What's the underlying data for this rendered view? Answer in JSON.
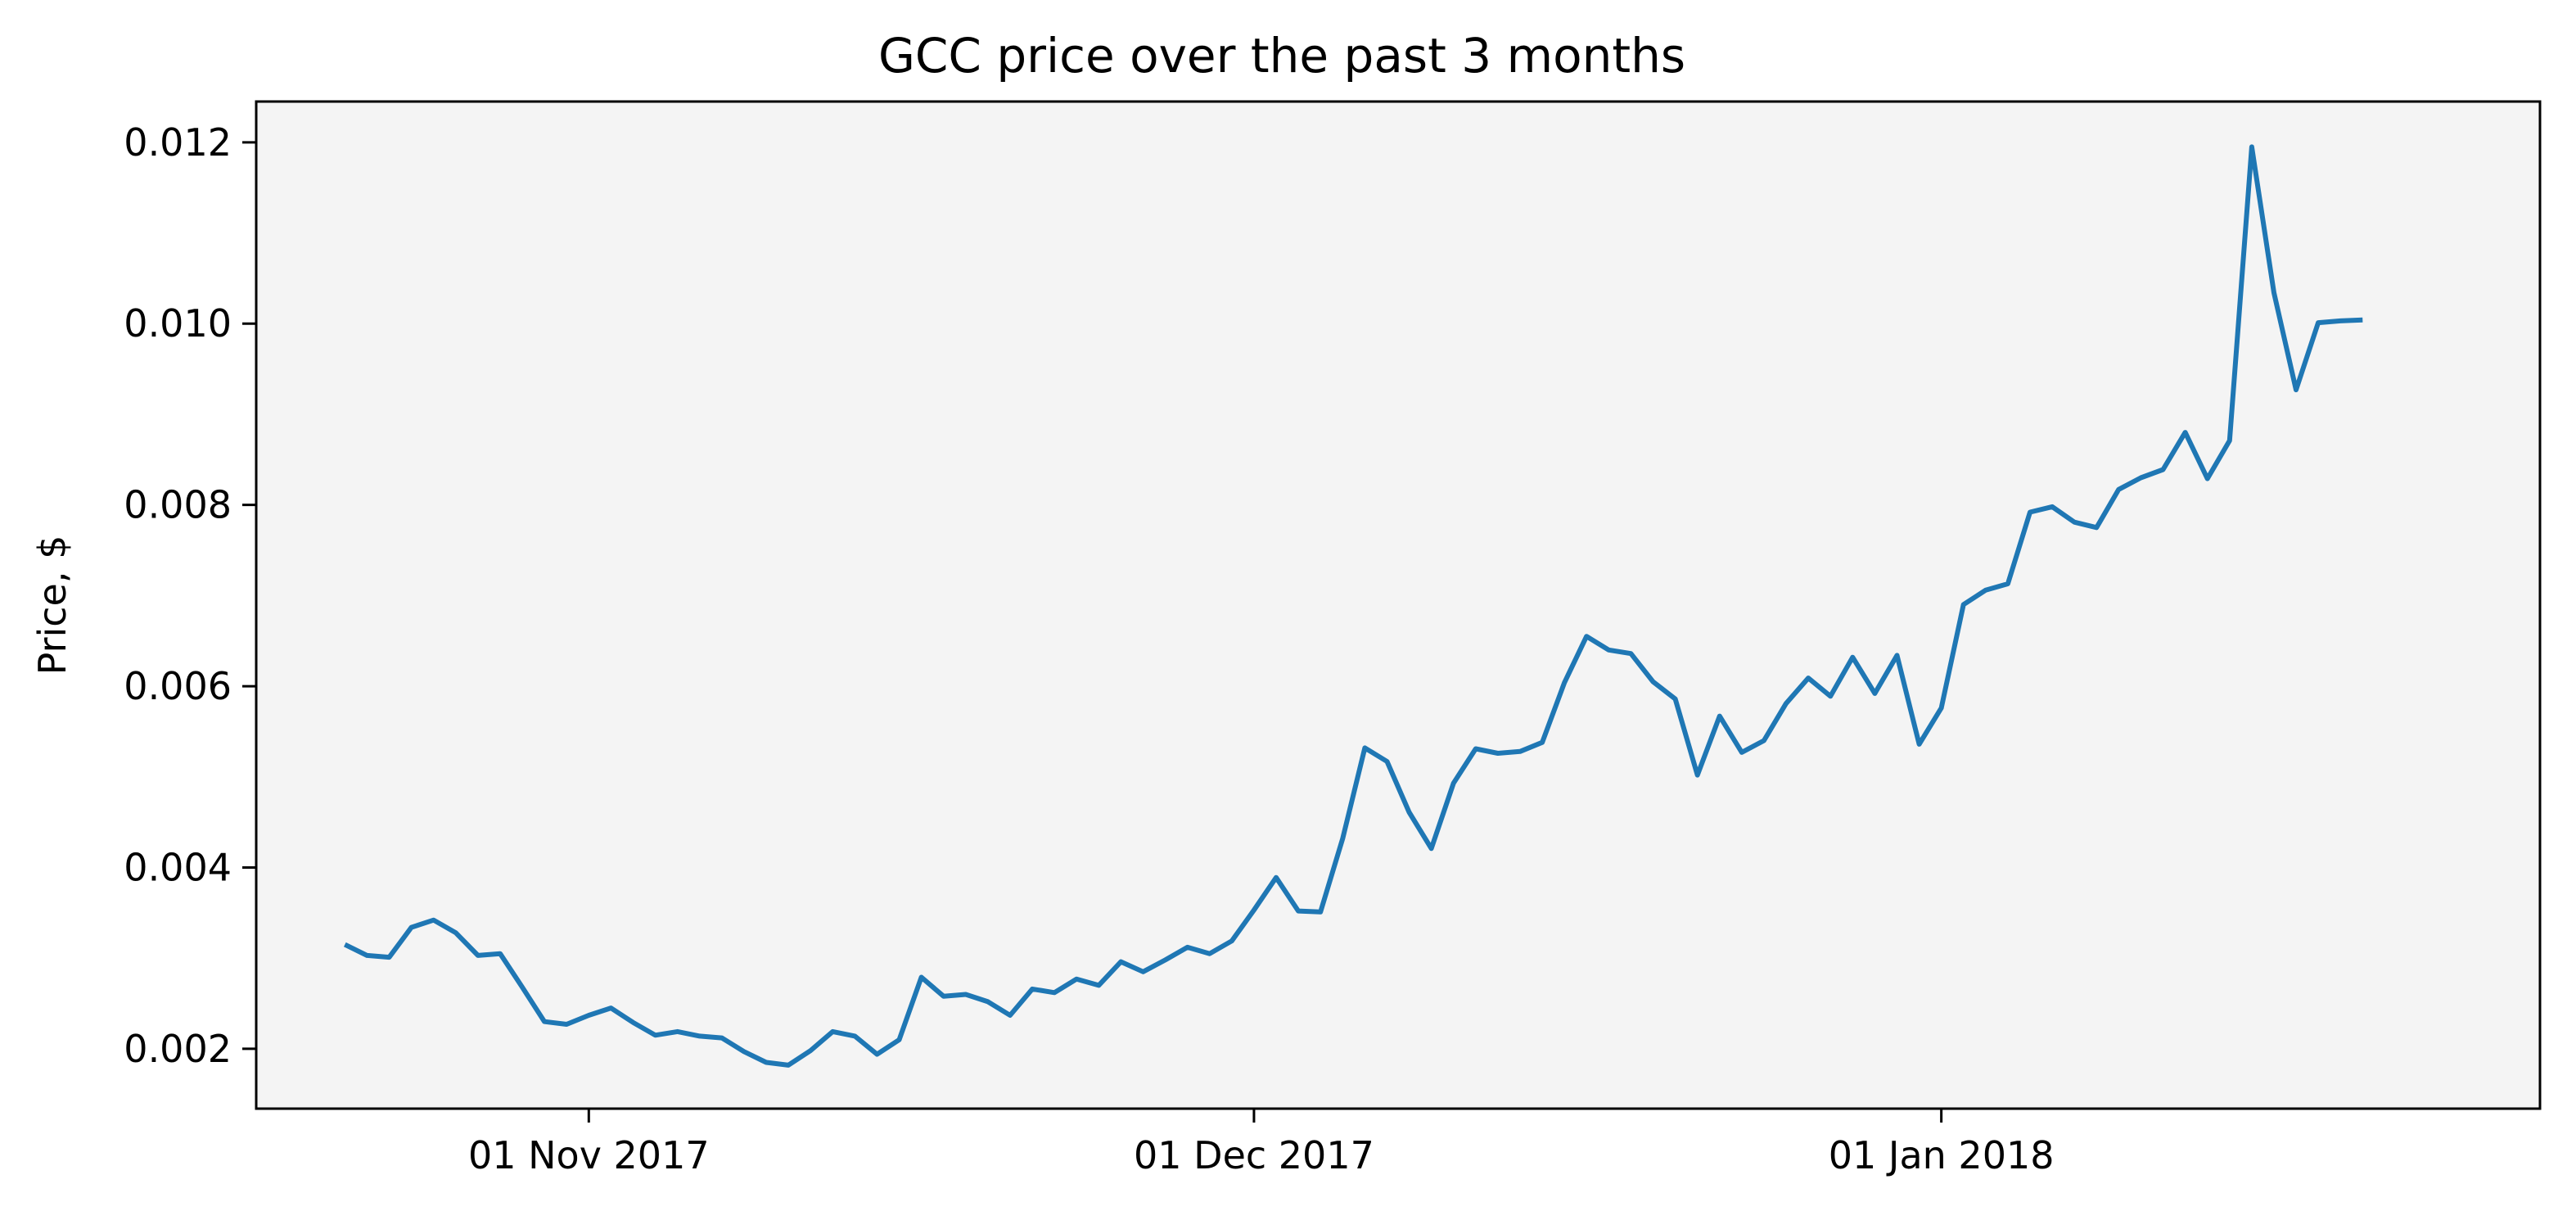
{
  "chart_data": {
    "type": "line",
    "title": "GCC price over the past 3 months",
    "xlabel": "",
    "ylabel": "Price, $",
    "x_axis": "date",
    "xlim": [
      "2017-10-17",
      "2018-01-28"
    ],
    "ylim": [
      0.00134,
      0.01245
    ],
    "xticks": [
      {
        "date": "2017-11-01",
        "label": "01 Nov 2017"
      },
      {
        "date": "2017-12-01",
        "label": "01 Dec 2017"
      },
      {
        "date": "2018-01-01",
        "label": "01 Jan 2018"
      }
    ],
    "yticks": [
      {
        "value": 0.002,
        "label": "0.002"
      },
      {
        "value": 0.004,
        "label": "0.004"
      },
      {
        "value": 0.006,
        "label": "0.006"
      },
      {
        "value": 0.008,
        "label": "0.008"
      },
      {
        "value": 0.01,
        "label": "0.010"
      },
      {
        "value": 0.012,
        "label": "0.012"
      }
    ],
    "grid": false,
    "legend": "none",
    "plot_background": "#f4f4f4",
    "series": [
      {
        "color": "#1f77b4",
        "dates": [
          "2017-10-21",
          "2017-10-22",
          "2017-10-23",
          "2017-10-24",
          "2017-10-25",
          "2017-10-26",
          "2017-10-27",
          "2017-10-28",
          "2017-10-29",
          "2017-10-30",
          "2017-10-31",
          "2017-11-01",
          "2017-11-02",
          "2017-11-03",
          "2017-11-04",
          "2017-11-05",
          "2017-11-06",
          "2017-11-07",
          "2017-11-08",
          "2017-11-09",
          "2017-11-10",
          "2017-11-11",
          "2017-11-12",
          "2017-11-13",
          "2017-11-14",
          "2017-11-15",
          "2017-11-16",
          "2017-11-17",
          "2017-11-18",
          "2017-11-19",
          "2017-11-20",
          "2017-11-21",
          "2017-11-22",
          "2017-11-23",
          "2017-11-24",
          "2017-11-25",
          "2017-11-26",
          "2017-11-27",
          "2017-11-28",
          "2017-11-29",
          "2017-11-30",
          "2017-12-01",
          "2017-12-02",
          "2017-12-03",
          "2017-12-04",
          "2017-12-05",
          "2017-12-06",
          "2017-12-07",
          "2017-12-08",
          "2017-12-09",
          "2017-12-10",
          "2017-12-11",
          "2017-12-12",
          "2017-12-13",
          "2017-12-14",
          "2017-12-15",
          "2017-12-16",
          "2017-12-17",
          "2017-12-18",
          "2017-12-19",
          "2017-12-20",
          "2017-12-21",
          "2017-12-22",
          "2017-12-23",
          "2017-12-24",
          "2017-12-25",
          "2017-12-26",
          "2017-12-27",
          "2017-12-28",
          "2017-12-29",
          "2017-12-30",
          "2017-12-31",
          "2018-01-01",
          "2018-01-02",
          "2018-01-03",
          "2018-01-04",
          "2018-01-05",
          "2018-01-06",
          "2018-01-07",
          "2018-01-08",
          "2018-01-09",
          "2018-01-10",
          "2018-01-11",
          "2018-01-12",
          "2018-01-13",
          "2018-01-14",
          "2018-01-15",
          "2018-01-16",
          "2018-01-17",
          "2018-01-18",
          "2018-01-19",
          "2018-01-20"
        ],
        "values": [
          0.00315,
          0.00303,
          0.00301,
          0.00334,
          0.00342,
          0.00328,
          0.00303,
          0.00305,
          0.00268,
          0.0023,
          0.00227,
          0.00237,
          0.00245,
          0.00229,
          0.00215,
          0.00219,
          0.00214,
          0.00212,
          0.00197,
          0.00185,
          0.00182,
          0.00198,
          0.00219,
          0.00214,
          0.00194,
          0.0021,
          0.00279,
          0.00258,
          0.0026,
          0.00252,
          0.00237,
          0.00266,
          0.00262,
          0.00277,
          0.0027,
          0.00296,
          0.00285,
          0.00298,
          0.00312,
          0.00305,
          0.00319,
          0.00353,
          0.00389,
          0.00352,
          0.00351,
          0.00432,
          0.00532,
          0.00517,
          0.00461,
          0.00421,
          0.00493,
          0.00531,
          0.00526,
          0.00528,
          0.00538,
          0.00604,
          0.00655,
          0.0064,
          0.00636,
          0.00605,
          0.00586,
          0.00502,
          0.00567,
          0.00527,
          0.0054,
          0.00581,
          0.00609,
          0.00589,
          0.00632,
          0.00592,
          0.00634,
          0.00536,
          0.00576,
          0.0069,
          0.00706,
          0.00713,
          0.00792,
          0.00798,
          0.00781,
          0.00775,
          0.00817,
          0.0083,
          0.00839,
          0.0088,
          0.00829,
          0.00871,
          0.01195,
          0.01034,
          0.00927,
          0.01001,
          0.01003,
          0.01004
        ]
      }
    ]
  }
}
